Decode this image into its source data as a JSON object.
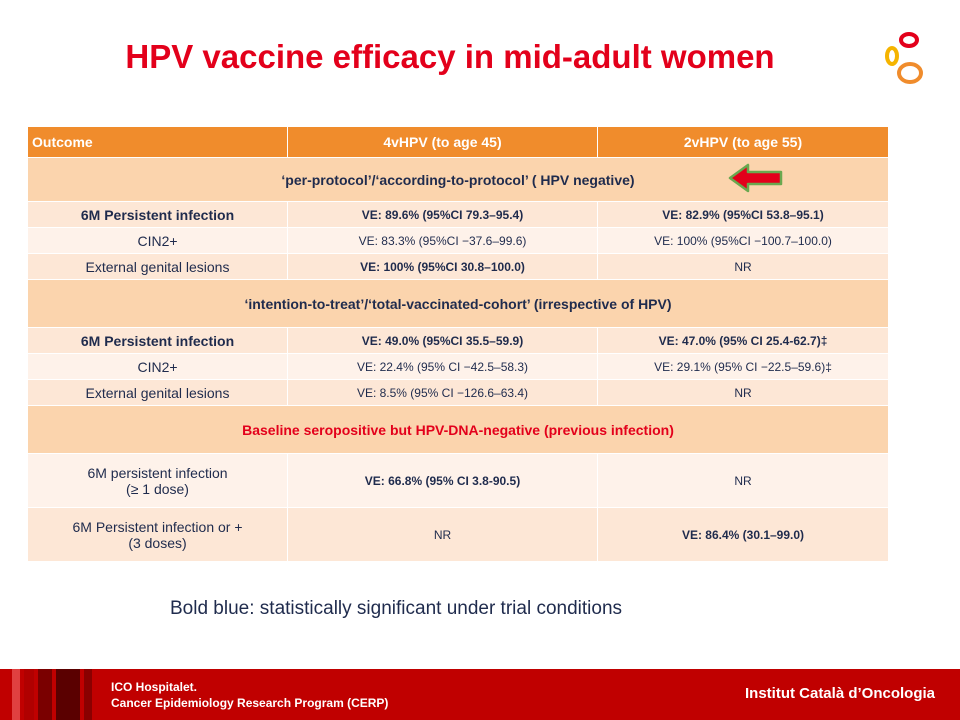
{
  "title": "HPV vaccine efficacy in mid-adult women",
  "logo_icon": "ico-rings-logo",
  "table": {
    "headers": [
      "Outcome",
      "4vHPV (to age 45)",
      "2vHPV (to age 55)"
    ],
    "sections": [
      {
        "title": "‘per-protocol’/‘according-to-protocol’ ( HPV negative)",
        "rows": [
          {
            "outcome": "6M Persistent infection",
            "outcome_sub": "",
            "v4": "VE: 89.6% (95%CI 79.3–95.4)",
            "v2": "VE: 82.9% (95%CI 53.8–95.1)"
          },
          {
            "outcome": "CIN2+",
            "outcome_sub": "",
            "v4": "VE: 83.3% (95%CI −37.6–99.6)",
            "v2": "VE: 100% (95%CI −100.7–100.0)"
          },
          {
            "outcome": "External genital lesions",
            "outcome_sub": "",
            "v4": "VE: 100% (95%CI 30.8–100.0)",
            "v2": "NR"
          }
        ]
      },
      {
        "title": "‘intention-to-treat’/‘total-vaccinated-cohort’ (irrespective of HPV)",
        "rows": [
          {
            "outcome": "6M Persistent infection",
            "outcome_sub": "",
            "v4": "VE: 49.0% (95%CI 35.5–59.9)",
            "v2": "VE: 47.0% (95% CI 25.4-62.7)‡"
          },
          {
            "outcome": "CIN2+",
            "outcome_sub": "",
            "v4": "VE: 22.4% (95% CI −42.5–58.3)",
            "v2": "VE: 29.1% (95% CI −22.5–59.6)‡"
          },
          {
            "outcome": "External genital lesions",
            "outcome_sub": "",
            "v4": "VE: 8.5% (95% CI −126.6–63.4)",
            "v2": "NR"
          }
        ]
      },
      {
        "title": "Baseline seropositive but HPV-DNA-negative (previous infection)",
        "rows": [
          {
            "outcome": "6M persistent infection",
            "outcome_sub": "(≥ 1 dose)",
            "v4": "VE: 66.8% (95% CI 3.8-90.5)",
            "v2": "NR"
          },
          {
            "outcome": "6M Persistent infection or +",
            "outcome_sub": "(3 doses)",
            "v4": "NR",
            "v2": "VE: 86.4% (30.1–99.0)"
          }
        ]
      }
    ]
  },
  "note": "Bold blue: statistically significant under trial conditions",
  "footer": {
    "line1": "ICO Hospitalet.",
    "line2": "Cancer Epidemiology Research Program (CERP)",
    "right": "Institut Català d’Oncologia"
  },
  "colors": {
    "title": "#e3001b",
    "header": "#f08c2c",
    "section": "#fbd4ad",
    "footer": "#c00000",
    "text": "#1f2b4d",
    "arrow": "#e3001b"
  }
}
